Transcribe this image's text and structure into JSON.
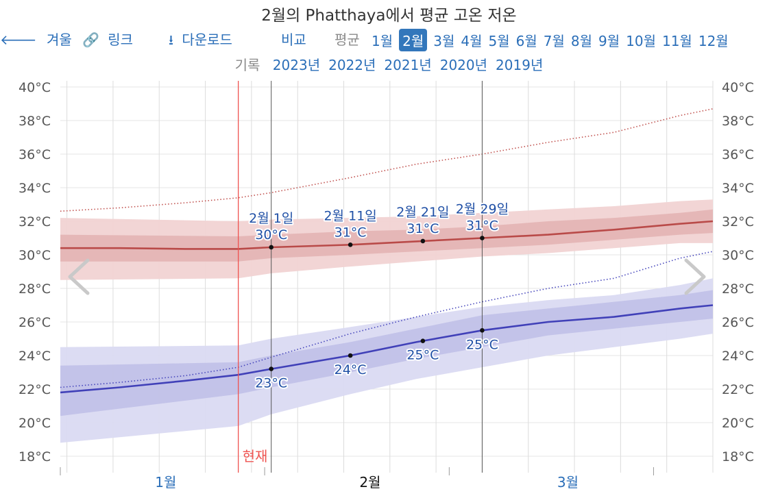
{
  "title": "2월의 Phatthaya에서 평균 고온 저온",
  "nav": {
    "winter": "겨울",
    "link": "링크",
    "download": "다운로드",
    "compare": "비교",
    "average": "평균",
    "months": [
      "1월",
      "2월",
      "3월",
      "4월",
      "5월",
      "6월",
      "7월",
      "8월",
      "9월",
      "10월",
      "11월",
      "12월"
    ],
    "selected_month": "2월",
    "history_label": "기록",
    "years": [
      "2023년",
      "2022년",
      "2021년",
      "2020년",
      "2019년"
    ]
  },
  "icons": {
    "back": "arrow-left-icon",
    "link": "link-icon",
    "download": "download-icon",
    "prev": "chevron-left-icon",
    "next": "chevron-right-icon"
  },
  "colors": {
    "high_line": "#b94a48",
    "high_band_outer": "#f1d3d3",
    "high_band_inner": "#e3b2b2",
    "low_line": "#4040b8",
    "low_band_outer": "#dadaf2",
    "low_band_inner": "#bebee6",
    "record_high": "#c0504d",
    "record_low": "#4444bb",
    "today": "#ef5350",
    "label": "#1f4fa5"
  },
  "chart_data": {
    "type": "line",
    "title": "2월의 Phatthaya에서 평균 고온 저온",
    "unit": "°C",
    "y_ticks": [
      "18°C",
      "20°C",
      "22°C",
      "24°C",
      "26°C",
      "28°C",
      "30°C",
      "32°C",
      "34°C",
      "36°C",
      "38°C",
      "40°C"
    ],
    "ylim": [
      17,
      40.5
    ],
    "x_range_days": [
      1,
      100
    ],
    "month_ticks": [
      {
        "label": "1월",
        "day": 17
      },
      {
        "label": "2월",
        "day": 48,
        "current": true
      },
      {
        "label": "3월",
        "day": 78
      }
    ],
    "month_boundaries": [
      1,
      32,
      60,
      91
    ],
    "today_day": 28,
    "today_label": "현재",
    "series": [
      {
        "kind": "avg-high",
        "days": [
          1,
          10,
          20,
          28,
          33,
          45,
          55,
          65,
          75,
          85,
          95,
          100
        ],
        "values": [
          30.4,
          30.4,
          30.35,
          30.35,
          30.45,
          30.6,
          30.8,
          31.0,
          31.2,
          31.5,
          31.85,
          32.0
        ]
      },
      {
        "kind": "high-p25-p75",
        "days": [
          1,
          28,
          33,
          45,
          55,
          65,
          75,
          85,
          95,
          100
        ],
        "lower": [
          29.6,
          29.6,
          29.8,
          30.0,
          30.2,
          30.4,
          30.6,
          30.9,
          31.2,
          31.3
        ],
        "upper": [
          31.2,
          31.1,
          31.2,
          31.4,
          31.5,
          31.7,
          32.0,
          32.2,
          32.5,
          32.7
        ]
      },
      {
        "kind": "high-p10-p90",
        "days": [
          1,
          28,
          33,
          45,
          55,
          65,
          75,
          85,
          95,
          100
        ],
        "lower": [
          28.5,
          28.6,
          28.9,
          29.3,
          29.6,
          29.9,
          30.1,
          30.4,
          30.7,
          30.7
        ],
        "upper": [
          32.2,
          32.0,
          32.1,
          32.2,
          32.3,
          32.5,
          32.7,
          32.9,
          33.2,
          33.3
        ]
      },
      {
        "kind": "record-high",
        "days": [
          1,
          10,
          20,
          28,
          33,
          45,
          55,
          65,
          75,
          85,
          95,
          100
        ],
        "values": [
          32.6,
          32.8,
          33.1,
          33.4,
          33.7,
          34.6,
          35.4,
          36.0,
          36.7,
          37.3,
          38.3,
          38.7
        ]
      },
      {
        "kind": "avg-low",
        "days": [
          1,
          10,
          20,
          28,
          33,
          45,
          55,
          65,
          75,
          85,
          95,
          100
        ],
        "values": [
          21.8,
          22.1,
          22.5,
          22.85,
          23.2,
          24.0,
          24.8,
          25.5,
          26.0,
          26.3,
          26.8,
          27.0
        ]
      },
      {
        "kind": "low-p25-p75",
        "days": [
          1,
          28,
          33,
          45,
          55,
          65,
          75,
          85,
          95,
          100
        ],
        "lower": [
          20.4,
          21.7,
          22.1,
          23.0,
          23.8,
          24.5,
          25.2,
          25.6,
          26.0,
          26.2
        ],
        "upper": [
          23.4,
          23.6,
          24.0,
          24.8,
          25.6,
          26.4,
          26.8,
          27.2,
          27.6,
          27.9
        ]
      },
      {
        "kind": "low-p10-p90",
        "days": [
          1,
          28,
          33,
          45,
          55,
          65,
          75,
          85,
          95,
          100
        ],
        "lower": [
          18.8,
          19.8,
          20.5,
          21.7,
          22.6,
          23.3,
          24.0,
          24.5,
          25.0,
          25.3
        ],
        "upper": [
          24.5,
          24.6,
          25.0,
          25.7,
          26.3,
          26.9,
          27.3,
          27.6,
          28.2,
          28.6
        ]
      },
      {
        "kind": "record-low",
        "days": [
          1,
          10,
          20,
          28,
          33,
          45,
          55,
          65,
          75,
          85,
          95,
          100
        ],
        "values": [
          22.1,
          22.4,
          22.8,
          23.3,
          23.9,
          25.3,
          26.3,
          27.2,
          28.0,
          28.6,
          29.8,
          30.2
        ]
      }
    ],
    "markers": [
      {
        "date": "2월 1일",
        "day": 33,
        "high": 30,
        "low": 23,
        "high_label": "30°C",
        "low_label": "23°C"
      },
      {
        "date": "2월 11일",
        "day": 45,
        "high": 31,
        "low": 24,
        "high_label": "31°C",
        "low_label": "24°C"
      },
      {
        "date": "2월 21일",
        "day": 56,
        "high": 31,
        "low": 25,
        "high_label": "31°C",
        "low_label": "25°C"
      },
      {
        "date": "2월 29일",
        "day": 65,
        "high": 31,
        "low": 25,
        "high_label": "31°C",
        "low_label": "25°C"
      }
    ]
  }
}
